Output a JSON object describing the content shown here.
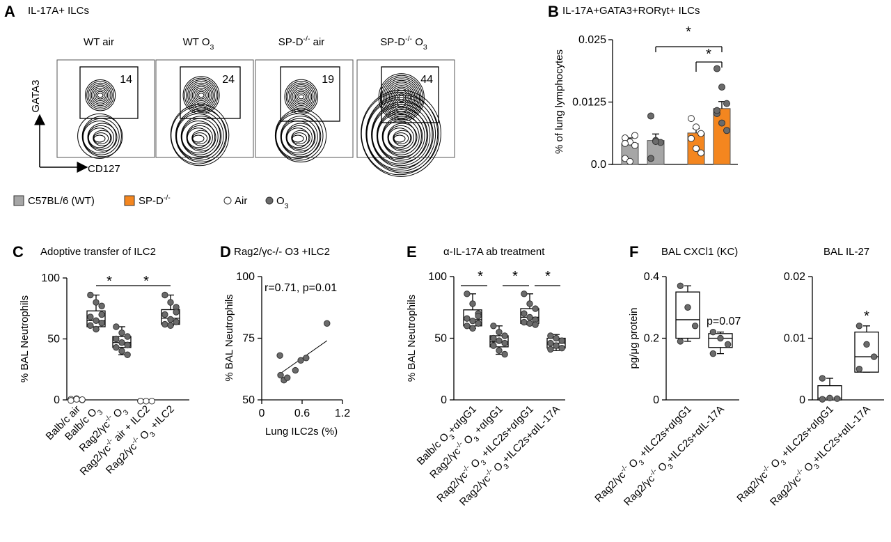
{
  "panels": {
    "A": {
      "letter": "A",
      "title": "IL-17A+ ILCs",
      "conditions": [
        "WT air",
        "WT O3",
        "SP-D-/- air",
        "SP-D-/- O3"
      ],
      "gate_values": [
        14,
        24,
        19,
        44
      ],
      "y_axis": "GATA3",
      "x_axis": "CD127"
    },
    "B": {
      "letter": "B",
      "title": "IL-17A+GATA3+RORγt+ ILCs"
    },
    "C": {
      "letter": "C",
      "title": "Adoptive transfer of ILC2"
    },
    "D": {
      "letter": "D",
      "title": "Rag2/γc-/- O3 +ILC2"
    },
    "E": {
      "letter": "E",
      "title": "α-IL-17A ab treatment"
    },
    "F": {
      "letter": "F",
      "title_1": "BAL CXCl1 (KC)",
      "title_2": "BAL IL-27"
    }
  },
  "legend": {
    "wt": "C57BL/6 (WT)",
    "spd": "SP-D-/-",
    "air": "Air",
    "o3": "O3"
  },
  "colors": {
    "wt": "#a6a6a6",
    "spd": "#f4861f",
    "dot": "#6b6b6b"
  },
  "chart_data": [
    {
      "panel": "B",
      "type": "bar",
      "ylabel": "% of lung lymphocytes",
      "ylim": [
        0,
        0.025
      ],
      "yticks": [
        "0.0",
        "0.0125",
        "0.025"
      ],
      "groups": [
        {
          "name": "WT air",
          "mean": 0.0042,
          "sem": 0.0011,
          "points": [
            0.0053,
            0.0045,
            0.0038,
            0.0012,
            0.0006,
            0.0058,
            0.0042
          ]
        },
        {
          "name": "WT O3",
          "mean": 0.0048,
          "sem": 0.0013,
          "points": [
            0.0097,
            0.0048,
            0.0044,
            0.0012,
            0.0046
          ]
        },
        {
          "name": "SP-D-/- air",
          "mean": 0.0063,
          "sem": 0.0009,
          "points": [
            0.0092,
            0.0075,
            0.0062,
            0.0052,
            0.0032,
            0.0023
          ]
        },
        {
          "name": "SP-D-/- O3",
          "mean": 0.0112,
          "sem": 0.0014,
          "points": [
            0.0192,
            0.0155,
            0.0122,
            0.0102,
            0.0083,
            0.0068,
            0.0108
          ]
        }
      ],
      "significance": [
        "*",
        "*"
      ]
    },
    {
      "panel": "C",
      "type": "box",
      "ylabel": "% BAL Neutrophils",
      "ylim": [
        0,
        100
      ],
      "yticks": [
        "0",
        "50",
        "100"
      ],
      "categories": [
        "Balb/c air",
        "Balb/c O3",
        "Rag2/γc-/- O3",
        "Rag2/γc-/- air + ILC2",
        "Rag2/γc-/- O3 +ILC2"
      ],
      "boxes": [
        {
          "min": 0,
          "q1": 0,
          "median": 0,
          "q3": 0,
          "max": 0,
          "points": [
            0.5,
            1,
            0,
            -0.5,
            0.5,
            0.2
          ]
        },
        {
          "min": 58,
          "q1": 60,
          "median": 65,
          "q3": 73,
          "max": 86,
          "points": [
            86,
            80,
            77,
            68,
            65,
            63,
            61,
            58,
            70
          ]
        },
        {
          "min": 37,
          "q1": 43,
          "median": 47,
          "q3": 52,
          "max": 60,
          "points": [
            60,
            55,
            52,
            50,
            47,
            45,
            43,
            40,
            37
          ]
        },
        {
          "min": -1,
          "q1": -1,
          "median": -1,
          "q3": -1,
          "max": -1,
          "points": [
            -1,
            -1,
            -1,
            -1
          ]
        },
        {
          "min": 61,
          "q1": 62,
          "median": 67,
          "q3": 74,
          "max": 86,
          "points": [
            86,
            80,
            76,
            70,
            66,
            64,
            62,
            61,
            72
          ]
        }
      ],
      "significance": [
        "*",
        "*"
      ]
    },
    {
      "panel": "D",
      "type": "scatter",
      "annotation": "r=0.71, p=0.01",
      "xlabel": "Lung ILC2s (%)",
      "ylabel": "% BAL Neutrophils",
      "xlim": [
        0,
        1.2
      ],
      "ylim": [
        50,
        100
      ],
      "xticks": [
        "0",
        "0.6",
        "1.2"
      ],
      "yticks": [
        "50",
        "75",
        "100"
      ],
      "points": [
        [
          0.27,
          68
        ],
        [
          0.28,
          60
        ],
        [
          0.33,
          58
        ],
        [
          0.38,
          59
        ],
        [
          0.5,
          62
        ],
        [
          0.58,
          66
        ],
        [
          0.66,
          67
        ],
        [
          0.97,
          81
        ]
      ],
      "fit": [
        [
          0.24,
          60
        ],
        [
          0.97,
          74
        ]
      ]
    },
    {
      "panel": "E",
      "type": "box",
      "ylabel": "% BAL Neutrophils",
      "ylim": [
        0,
        100
      ],
      "yticks": [
        "0",
        "50",
        "100"
      ],
      "categories": [
        "Balb/c O3+αIgG1",
        "Rag2/γc-/- O3 +αIgG1",
        "Rag2/γc-/- O3 +ILC2s+αIgG1",
        "Rag2/γc-/- O3+ILC2s+αIL-17A"
      ],
      "boxes": [
        {
          "min": 58,
          "q1": 60,
          "median": 65,
          "q3": 73,
          "max": 86,
          "points": [
            86,
            78,
            70,
            66,
            64,
            62,
            60,
            58,
            68
          ]
        },
        {
          "min": 37,
          "q1": 43,
          "median": 47,
          "q3": 52,
          "max": 60,
          "points": [
            60,
            55,
            52,
            50,
            48,
            46,
            44,
            40,
            37
          ]
        },
        {
          "min": 61,
          "q1": 62,
          "median": 67,
          "q3": 74,
          "max": 86,
          "points": [
            86,
            78,
            74,
            70,
            67,
            65,
            63,
            62,
            61
          ]
        },
        {
          "min": 40,
          "q1": 42,
          "median": 46,
          "q3": 50,
          "max": 53,
          "points": [
            52,
            50,
            48,
            46,
            44,
            42,
            41
          ]
        }
      ],
      "significance": [
        "*",
        "*",
        "*"
      ]
    },
    {
      "panel": "F",
      "type": "box",
      "title": "BAL CXCl1 (KC)",
      "ylabel": "pg/μg protein",
      "ylim": [
        0,
        0.4
      ],
      "yticks": [
        "0",
        "0.2",
        "0.4"
      ],
      "annotation": "p=0.07",
      "categories": [
        "Rag2/γc-/- O3 +ILC2s+αIgG1",
        "Rag2/γc-/- O3+ILC2s+αIL-17A"
      ],
      "boxes": [
        {
          "min": 0.19,
          "q1": 0.2,
          "median": 0.26,
          "q3": 0.35,
          "max": 0.37,
          "points": [
            0.37,
            0.3,
            0.24,
            0.19
          ]
        },
        {
          "min": 0.15,
          "q1": 0.17,
          "median": 0.2,
          "q3": 0.215,
          "max": 0.22,
          "points": [
            0.22,
            0.2,
            0.18,
            0.15
          ]
        }
      ]
    },
    {
      "panel": "F",
      "type": "box",
      "title": "BAL IL-27",
      "ylim": [
        0,
        0.02
      ],
      "yticks": [
        "0",
        "0.01",
        "0.02"
      ],
      "categories": [
        "Rag2/γc-/- O3 +ILC2s+αIgG1",
        "Rag2/γc-/- O3+ILC2s+αIL-17A"
      ],
      "boxes": [
        {
          "min": 0,
          "q1": 0,
          "median": 0.0003,
          "q3": 0.0023,
          "max": 0.0035,
          "points": [
            0.0035,
            0.0003,
            0.0002,
            0.0001
          ]
        },
        {
          "min": 0.0045,
          "q1": 0.0045,
          "median": 0.007,
          "q3": 0.011,
          "max": 0.012,
          "points": [
            0.012,
            0.009,
            0.007,
            0.005
          ]
        }
      ],
      "significance": [
        "*"
      ]
    }
  ]
}
